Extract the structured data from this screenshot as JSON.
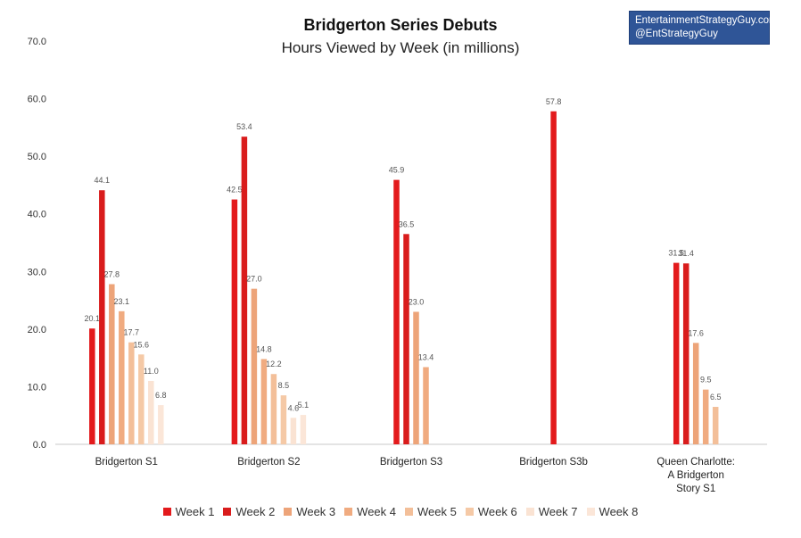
{
  "header": {
    "title": "Bridgerton Series Debuts",
    "subtitle": "Hours Viewed by Week (in millions)"
  },
  "watermark": {
    "line1": "EntertainmentStrategyGuy.com",
    "line2": "@EntStrategyGuy"
  },
  "colors": {
    "week1": "#e31a1c",
    "week2": "#d91c1c",
    "week3": "#eda479",
    "week4": "#f0ab80",
    "week5": "#f3bf99",
    "week6": "#f5c9a6",
    "week7": "#fae3d3",
    "week8": "#fbe6d8"
  },
  "chart_data": {
    "type": "bar",
    "title": "Bridgerton Series Debuts",
    "subtitle": "Hours Viewed by Week (in millions)",
    "categories": [
      "Bridgerton S1",
      "Bridgerton S2",
      "Bridgerton S3",
      "Bridgerton S3b",
      "Queen Charlotte: A Bridgerton Story S1"
    ],
    "category_lines": [
      [
        "Bridgerton S1"
      ],
      [
        "Bridgerton S2"
      ],
      [
        "Bridgerton S3"
      ],
      [
        "Bridgerton S3b"
      ],
      [
        "Queen Charlotte:",
        "A Bridgerton",
        "Story S1"
      ]
    ],
    "series": [
      {
        "name": "Week 1",
        "values": [
          20.1,
          42.5,
          45.9,
          57.8,
          31.5
        ]
      },
      {
        "name": "Week 2",
        "values": [
          44.1,
          53.4,
          36.5,
          null,
          31.4
        ]
      },
      {
        "name": "Week 3",
        "values": [
          27.8,
          27.0,
          23.0,
          null,
          17.6
        ]
      },
      {
        "name": "Week 4",
        "values": [
          23.1,
          14.8,
          13.4,
          null,
          9.5
        ]
      },
      {
        "name": "Week 5",
        "values": [
          17.7,
          12.2,
          null,
          null,
          6.5
        ]
      },
      {
        "name": "Week 6",
        "values": [
          15.6,
          8.5,
          null,
          null,
          null
        ]
      },
      {
        "name": "Week 7",
        "values": [
          11.0,
          4.6,
          null,
          null,
          null
        ]
      },
      {
        "name": "Week 8",
        "values": [
          6.8,
          5.1,
          null,
          null,
          null
        ]
      }
    ],
    "ylim": [
      0,
      70
    ],
    "yticks": [
      "0.0",
      "10.0",
      "20.0",
      "30.0",
      "40.0",
      "50.0",
      "60.0",
      "70.0"
    ],
    "grid": false,
    "legend": "bottom",
    "data_labels": true
  }
}
